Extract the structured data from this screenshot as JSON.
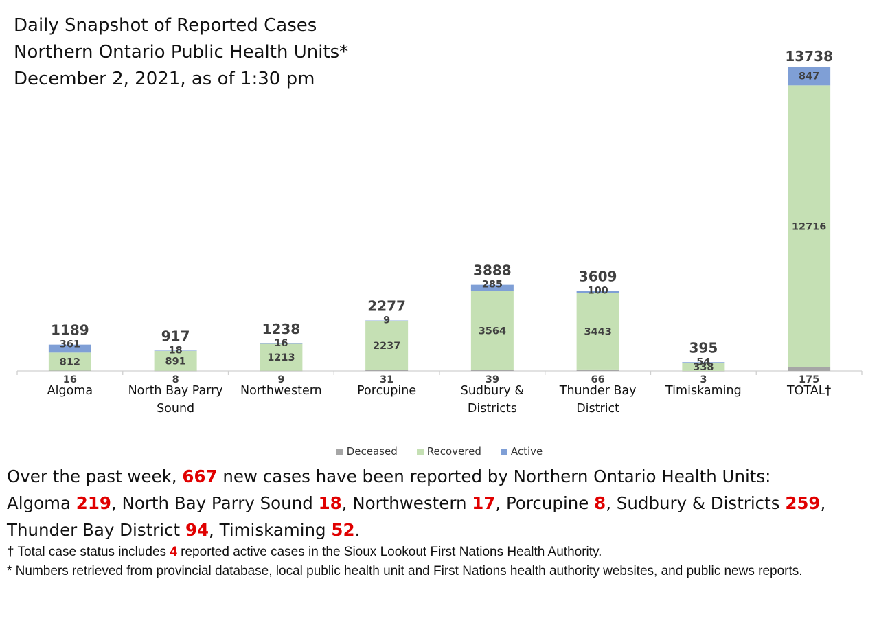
{
  "title": {
    "line1": "Daily Snapshot of Reported Cases",
    "line2": "Northern Ontario Public Health Units*",
    "line3": "December 2, 2021, as of 1:30 pm"
  },
  "colors": {
    "deceased": "#a6a6a6",
    "recovered": "#c5e0b4",
    "active": "#7f9fd6",
    "highlight": "#e00000",
    "axis": "#d0d0d0",
    "label": "#404040"
  },
  "chart_data": {
    "type": "bar",
    "stacked": true,
    "categories": [
      "Algoma",
      "North Bay Parry Sound",
      "Northwestern",
      "Porcupine",
      "Sudbury & Districts",
      "Thunder Bay District",
      "Timiskaming",
      "TOTAL†"
    ],
    "category_lines": [
      [
        "Algoma"
      ],
      [
        "North Bay Parry",
        "Sound"
      ],
      [
        "Northwestern"
      ],
      [
        "Porcupine"
      ],
      [
        "Sudbury &",
        "Districts"
      ],
      [
        "Thunder Bay",
        "District"
      ],
      [
        "Timiskaming"
      ],
      [
        "TOTAL†"
      ]
    ],
    "series": [
      {
        "name": "Deceased",
        "values": [
          16,
          8,
          9,
          31,
          39,
          66,
          3,
          175
        ]
      },
      {
        "name": "Recovered",
        "values": [
          812,
          891,
          1213,
          2237,
          3564,
          3443,
          338,
          12716
        ]
      },
      {
        "name": "Active",
        "values": [
          361,
          18,
          16,
          9,
          285,
          100,
          54,
          847
        ]
      }
    ],
    "totals": [
      1189,
      917,
      1238,
      2277,
      3888,
      3609,
      395,
      13738
    ],
    "ylim": [
      0,
      13738
    ],
    "grid": false,
    "legend": "bottom"
  },
  "summary": {
    "line1": [
      {
        "text": "Over the past week, ",
        "hl": false
      },
      {
        "text": "667",
        "hl": true
      },
      {
        "text": " new cases have been reported by Northern Ontario Health Units:",
        "hl": false
      }
    ],
    "line2": [
      {
        "text": "Algoma ",
        "hl": false
      },
      {
        "text": "219",
        "hl": true
      },
      {
        "text": ", North Bay Parry Sound ",
        "hl": false
      },
      {
        "text": "18",
        "hl": true
      },
      {
        "text": ", Northwestern ",
        "hl": false
      },
      {
        "text": "17",
        "hl": true
      },
      {
        "text": ", Porcupine ",
        "hl": false
      },
      {
        "text": "8",
        "hl": true
      },
      {
        "text": ", Sudbury & Districts ",
        "hl": false
      },
      {
        "text": "259",
        "hl": true
      },
      {
        "text": ",",
        "hl": false
      }
    ],
    "line3": [
      {
        "text": "Thunder Bay District ",
        "hl": false
      },
      {
        "text": "94",
        "hl": true
      },
      {
        "text": ", Timiskaming ",
        "hl": false
      },
      {
        "text": "52",
        "hl": true
      },
      {
        "text": ".",
        "hl": false
      }
    ]
  },
  "notes": {
    "dagger": [
      {
        "text": "† Total case status includes ",
        "hl": false
      },
      {
        "text": "4",
        "hl": true
      },
      {
        "text": " reported active cases in the Sioux Lookout First Nations Health Authority.",
        "hl": false
      }
    ],
    "asterisk": "* Numbers retrieved from provincial database, local public health unit and First Nations health authority websites, and public news reports."
  }
}
